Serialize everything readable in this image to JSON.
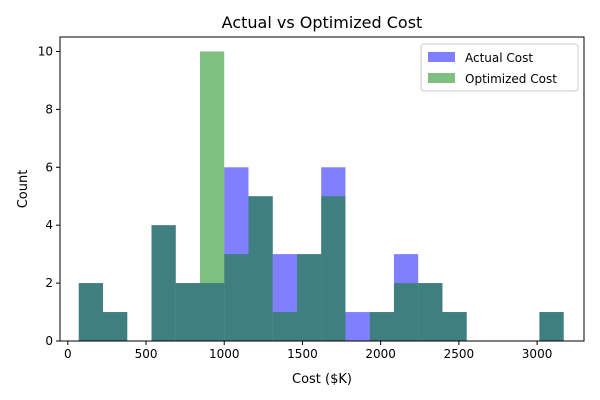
{
  "chart_data": {
    "type": "bar",
    "title": "Actual vs Optimized Cost",
    "xlabel": "Cost ($K)",
    "ylabel": "Count",
    "xlim": [
      -50,
      3300
    ],
    "ylim": [
      0,
      10.5
    ],
    "xticks": [
      0,
      500,
      1000,
      1500,
      2000,
      2500,
      3000
    ],
    "xtick_labels": [
      "0",
      "500",
      "1000",
      "1500",
      "2000",
      "2500",
      "3000"
    ],
    "yticks": [
      0,
      2,
      4,
      6,
      8,
      10
    ],
    "ytick_labels": [
      "0",
      "2",
      "4",
      "6",
      "8",
      "10"
    ],
    "grid": false,
    "legend_position": "top-right",
    "bin_edges": [
      70,
      225,
      380,
      535,
      690,
      845,
      1000,
      1155,
      1310,
      1465,
      1620,
      1775,
      1930,
      2085,
      2240,
      2395,
      2550,
      2705,
      2860,
      3015,
      3170
    ],
    "series": [
      {
        "name": "Actual Cost",
        "color": "#0000ff",
        "opacity": 0.5,
        "values": [
          2,
          1,
          0,
          4,
          2,
          2,
          6,
          5,
          3,
          3,
          6,
          1,
          1,
          3,
          2,
          1,
          0,
          0,
          0,
          1
        ]
      },
      {
        "name": "Optimized Cost",
        "color": "#008000",
        "opacity": 0.5,
        "values": [
          2,
          1,
          0,
          4,
          2,
          10,
          3,
          5,
          1,
          3,
          5,
          0,
          1,
          2,
          2,
          1,
          0,
          0,
          0,
          1
        ]
      }
    ]
  }
}
